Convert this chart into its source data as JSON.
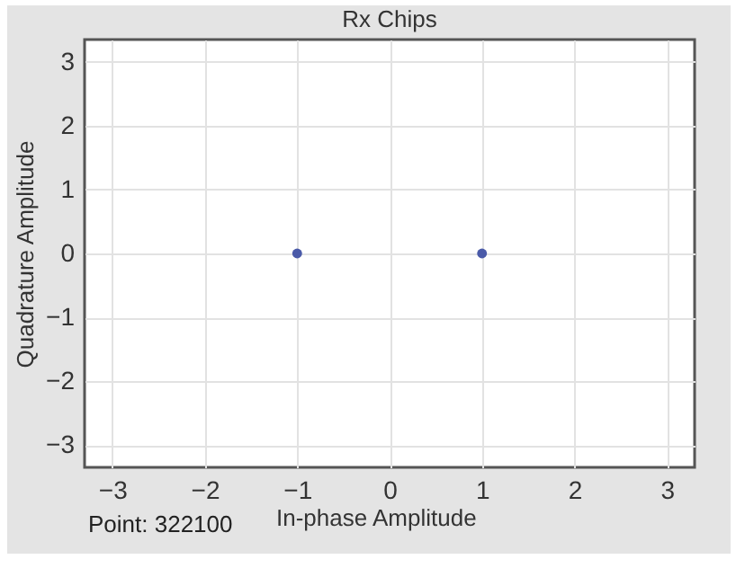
{
  "chart_data": {
    "type": "scatter",
    "title": "Rx Chips",
    "xlabel": "In-phase Amplitude",
    "ylabel": "Quadrature Amplitude",
    "annotations": [
      "Point: 322100"
    ],
    "x": [
      -1,
      1
    ],
    "series": [
      {
        "color": "#4a5aa8",
        "values": [
          0,
          0
        ]
      }
    ],
    "xlim": [
      -3.3,
      3.3
    ],
    "xticks": [
      -3,
      -2,
      -1,
      0,
      1,
      2,
      3
    ],
    "ylim": [
      -3.35,
      3.35
    ],
    "yticks": [
      -3,
      -2,
      -1,
      0,
      1,
      2,
      3
    ],
    "grid": true,
    "marker": "circle",
    "legend": false
  }
}
